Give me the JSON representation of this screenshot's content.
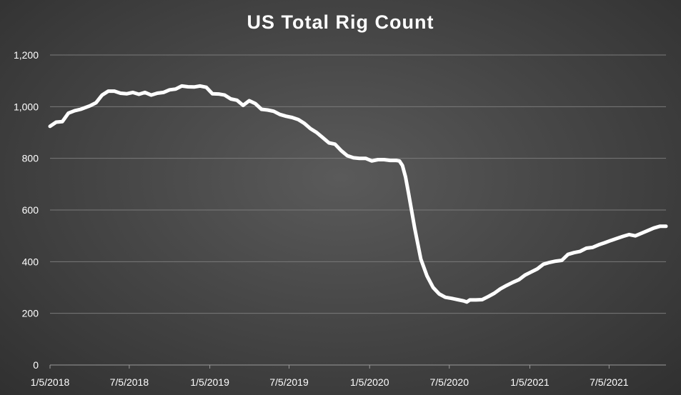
{
  "chart_data": {
    "type": "line",
    "title": "US Total Rig Count",
    "xlabel": "",
    "ylabel": "",
    "ylim": [
      0,
      1200
    ],
    "yticks": [
      0,
      200,
      400,
      600,
      800,
      1000,
      1200
    ],
    "ytick_labels": [
      "0",
      "200",
      "400",
      "600",
      "800",
      "1,000",
      "1,200"
    ],
    "xlim": [
      "2018-01-05",
      "2021-11-12"
    ],
    "xticks": [
      "2018-01-05",
      "2018-07-05",
      "2019-01-05",
      "2019-07-05",
      "2020-01-05",
      "2020-07-05",
      "2021-01-05",
      "2021-07-05"
    ],
    "xtick_labels": [
      "1/5/2018",
      "7/5/2018",
      "1/5/2019",
      "7/5/2019",
      "1/5/2020",
      "7/5/2020",
      "1/5/2021",
      "7/5/2021"
    ],
    "grid": true,
    "colors": {
      "line": "#ffffff",
      "grid": "#7a7a7a"
    },
    "series": [
      {
        "x": [
          "2018-01-05",
          "2018-01-19",
          "2018-02-02",
          "2018-02-16",
          "2018-03-02",
          "2018-03-16",
          "2018-04-06",
          "2018-04-20",
          "2018-05-04",
          "2018-05-18",
          "2018-06-01",
          "2018-06-15",
          "2018-06-29",
          "2018-07-13",
          "2018-07-27",
          "2018-08-10",
          "2018-08-24",
          "2018-09-07",
          "2018-09-21",
          "2018-10-05",
          "2018-10-19",
          "2018-11-02",
          "2018-11-16",
          "2018-11-30",
          "2018-12-14",
          "2018-12-28",
          "2019-01-11",
          "2019-01-25",
          "2019-02-08",
          "2019-02-22",
          "2019-03-08",
          "2019-03-22",
          "2019-04-05",
          "2019-04-19",
          "2019-05-03",
          "2019-05-17",
          "2019-05-31",
          "2019-06-14",
          "2019-06-28",
          "2019-07-12",
          "2019-07-26",
          "2019-08-09",
          "2019-08-23",
          "2019-09-06",
          "2019-09-20",
          "2019-10-04",
          "2019-10-18",
          "2019-11-01",
          "2019-11-15",
          "2019-11-29",
          "2019-12-13",
          "2019-12-27",
          "2020-01-10",
          "2020-01-24",
          "2020-02-07",
          "2020-02-21",
          "2020-03-06",
          "2020-03-13",
          "2020-03-20",
          "2020-03-27",
          "2020-04-03",
          "2020-04-17",
          "2020-05-01",
          "2020-05-15",
          "2020-05-29",
          "2020-06-12",
          "2020-06-26",
          "2020-07-10",
          "2020-07-24",
          "2020-08-07",
          "2020-08-14",
          "2020-08-21",
          "2020-09-04",
          "2020-09-18",
          "2020-10-02",
          "2020-10-16",
          "2020-10-30",
          "2020-11-13",
          "2020-11-27",
          "2020-12-11",
          "2020-12-25",
          "2021-01-08",
          "2021-01-22",
          "2021-02-05",
          "2021-02-19",
          "2021-03-05",
          "2021-03-19",
          "2021-04-02",
          "2021-04-16",
          "2021-04-30",
          "2021-05-14",
          "2021-05-28",
          "2021-06-11",
          "2021-06-25",
          "2021-07-09",
          "2021-07-23",
          "2021-08-06",
          "2021-08-20",
          "2021-09-03",
          "2021-09-17",
          "2021-10-01",
          "2021-10-15",
          "2021-10-29",
          "2021-11-12"
        ],
        "y": [
          924,
          940,
          942,
          975,
          984,
          990,
          1003,
          1015,
          1045,
          1060,
          1060,
          1052,
          1050,
          1055,
          1048,
          1055,
          1045,
          1052,
          1055,
          1065,
          1068,
          1080,
          1077,
          1076,
          1080,
          1075,
          1050,
          1049,
          1045,
          1030,
          1025,
          1005,
          1023,
          1012,
          990,
          987,
          982,
          970,
          963,
          958,
          950,
          935,
          915,
          900,
          880,
          860,
          855,
          830,
          810,
          802,
          800,
          800,
          790,
          795,
          795,
          792,
          792,
          790,
          772,
          728,
          664,
          530,
          410,
          345,
          300,
          275,
          262,
          258,
          253,
          248,
          244,
          252,
          252,
          253,
          265,
          278,
          295,
          308,
          320,
          330,
          348,
          360,
          372,
          390,
          397,
          402,
          405,
          428,
          435,
          440,
          452,
          455,
          465,
          473,
          482,
          490,
          498,
          505,
          500,
          510,
          520,
          530,
          537,
          537
        ]
      }
    ]
  }
}
